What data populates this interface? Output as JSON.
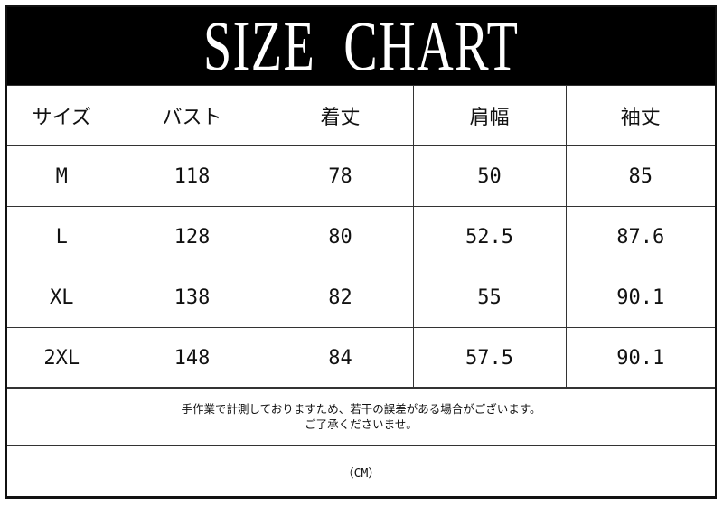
{
  "title": "SIZE  CHART",
  "headers": [
    "サイズ",
    "バスト",
    "着丈",
    "肩幅",
    "袖丈"
  ],
  "rows": [
    [
      "M",
      "118",
      "78",
      "50",
      "85"
    ],
    [
      "L",
      "128",
      "80",
      "52.5",
      "87.6"
    ],
    [
      "XL",
      "138",
      "82",
      "55",
      "90.1"
    ],
    [
      "2XL",
      "148",
      "84",
      "57.5",
      "90.1"
    ]
  ],
  "note": {
    "line1": "手作業で計測しておりますため、若干の誤差がある場合がございます。",
    "line2": "ご了承くださいませ。"
  },
  "unit": "（CM）"
}
